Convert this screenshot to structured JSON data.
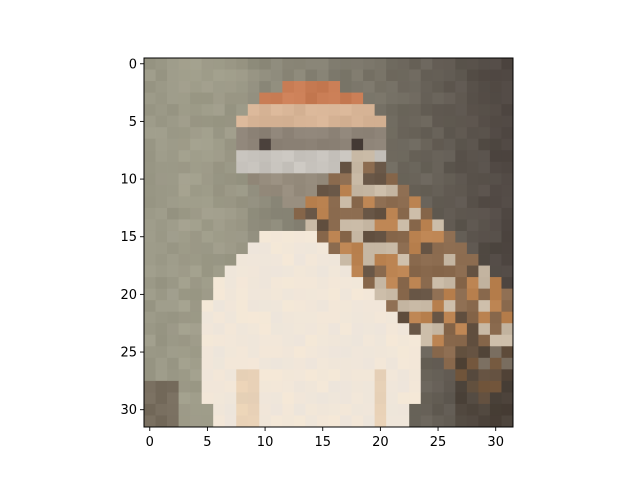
{
  "chart_data": {
    "type": "heatmap",
    "title": "",
    "xlabel": "",
    "ylabel": "",
    "image_size": [
      32,
      32
    ],
    "xlim": [
      -0.5,
      31.5
    ],
    "ylim": [
      31.5,
      -0.5
    ],
    "x_ticks": [
      0,
      5,
      10,
      15,
      20,
      25,
      30
    ],
    "y_ticks": [
      0,
      5,
      10,
      15,
      20,
      25,
      30
    ],
    "subject": "Low-resolution photo of a bird (sparrow) with brown head stripes, brown-streaked wing and pale white breast",
    "palette": {
      "background_left": "#9c9a88",
      "background_right": "#4e4641",
      "crown": "#c97d55",
      "breast": "#f4ece2",
      "wing": "#8a6a4e"
    }
  }
}
